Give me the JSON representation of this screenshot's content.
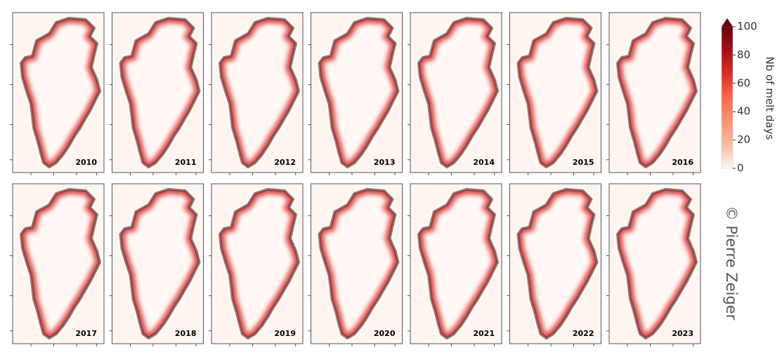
{
  "chart_data": {
    "type": "map",
    "panels": [
      "2010",
      "2011",
      "2012",
      "2013",
      "2014",
      "2015",
      "2016",
      "2017",
      "2018",
      "2019",
      "2020",
      "2021",
      "2022",
      "2023"
    ],
    "colorbar": {
      "label": "Nb of melt days",
      "ylim": [
        0,
        100
      ],
      "yticks": [
        0,
        20,
        40,
        60,
        80,
        100
      ],
      "colors": [
        "#fff5f0",
        "#fcbba1",
        "#fc9272",
        "#fb6a4a",
        "#de2d26",
        "#a50f15",
        "#67000d"
      ]
    },
    "credit": "© Pierre Zeiger"
  }
}
